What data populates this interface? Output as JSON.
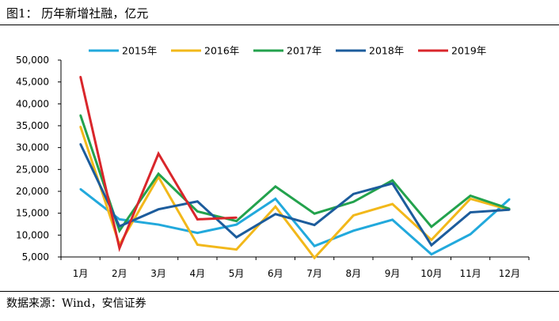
{
  "figure": {
    "title": "图1：  历年新增社融，亿元",
    "source": "数据来源：Wind，安信证券"
  },
  "chart_data": {
    "type": "line",
    "title": "历年新增社融，亿元",
    "xlabel": "",
    "ylabel": "",
    "categories": [
      "1月",
      "2月",
      "3月",
      "4月",
      "5月",
      "6月",
      "7月",
      "8月",
      "9月",
      "10月",
      "11月",
      "12月"
    ],
    "ylim": [
      5000,
      50000
    ],
    "yticks": [
      5000,
      10000,
      15000,
      20000,
      25000,
      30000,
      35000,
      40000,
      45000,
      50000
    ],
    "ytick_labels": [
      "5,000",
      "10,000",
      "15,000",
      "20,000",
      "25,000",
      "30,000",
      "35,000",
      "40,000",
      "45,000",
      "50,000"
    ],
    "grid": false,
    "legend_position": "top",
    "series": [
      {
        "name": "2015年",
        "color": "#22A9DC",
        "values": [
          20500,
          13600,
          12400,
          10500,
          12400,
          18300,
          7500,
          11000,
          13500,
          5600,
          10200,
          18200
        ]
      },
      {
        "name": "2016年",
        "color": "#F2B81A",
        "values": [
          34800,
          7800,
          23300,
          7800,
          6700,
          16500,
          4800,
          14500,
          17100,
          8900,
          18300,
          15800
        ]
      },
      {
        "name": "2017年",
        "color": "#23A24D",
        "values": [
          37400,
          11000,
          24000,
          15400,
          13200,
          21100,
          14900,
          17600,
          22500,
          11900,
          19000,
          16000
        ]
      },
      {
        "name": "2018年",
        "color": "#1C5C9C",
        "values": [
          30800,
          12000,
          15900,
          17700,
          9500,
          14800,
          12300,
          19400,
          21800,
          7700,
          15200,
          15800
        ]
      },
      {
        "name": "2019年",
        "color": "#D9262B",
        "values": [
          46200,
          7000,
          28600,
          13600,
          14000,
          null,
          null,
          null,
          null,
          null,
          null,
          null
        ]
      }
    ]
  }
}
